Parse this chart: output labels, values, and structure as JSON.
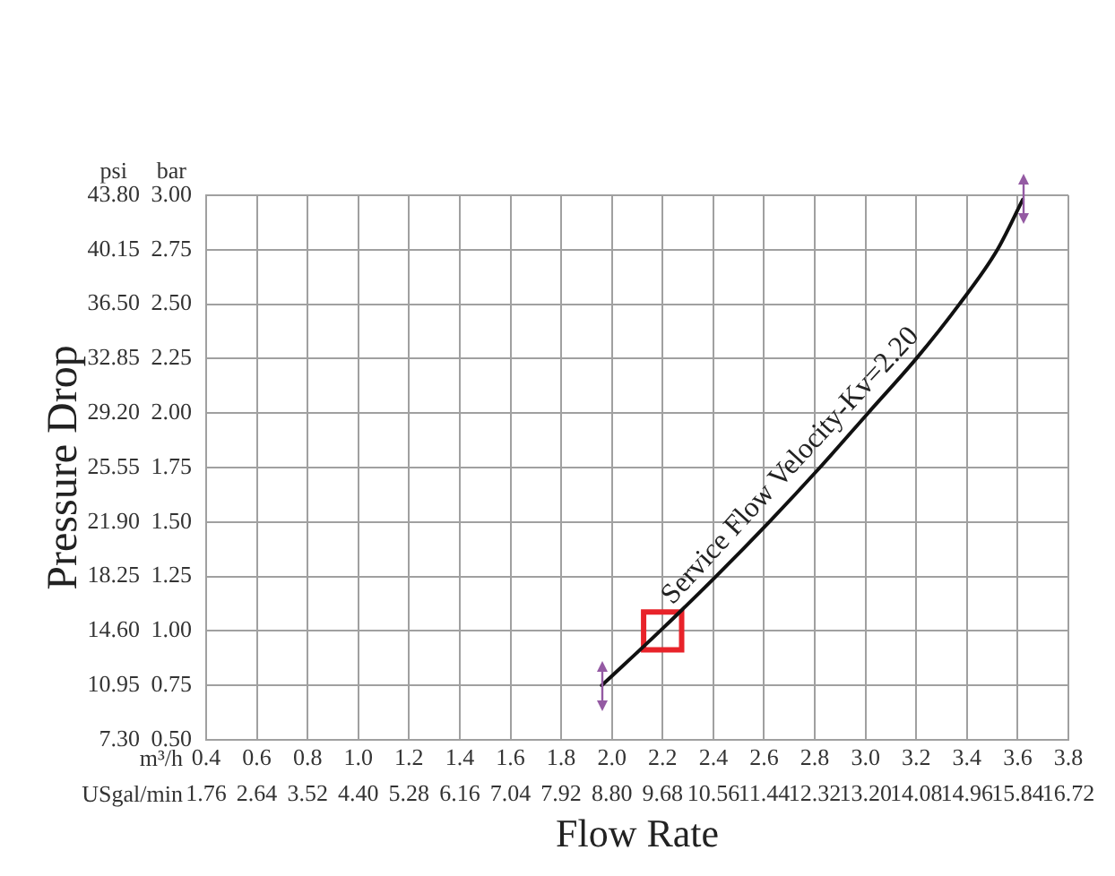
{
  "chart_data": {
    "type": "line",
    "xlabel": "Flow Rate",
    "ylabel": "Pressure Drop",
    "annotations": [
      "psi",
      "bar",
      "m³/h",
      "USgal/min"
    ],
    "series": [
      {
        "name": "Service Flow Velocity-Kv=2.20",
        "color": "#111111",
        "marker": "none",
        "axis": "y2",
        "x": [
          1.96,
          2.19,
          2.41,
          2.62,
          2.82,
          3.01,
          3.2,
          3.37,
          3.52,
          3.62
        ],
        "values": [
          0.75,
          1.0,
          1.25,
          1.5,
          1.75,
          2.0,
          2.25,
          2.5,
          2.75,
          2.98
        ]
      },
      {
        "type": "scatter",
        "color": "#e8232a",
        "marker": "square",
        "axis": "y2",
        "x": [
          2.2
        ],
        "values": [
          1.0
        ]
      }
    ],
    "xlim": [
      0.4,
      3.8
    ],
    "xticks": [
      0.4,
      0.6,
      0.8,
      {
        "value": 1,
        "label": "1.0"
      },
      1.2,
      1.4,
      1.6,
      1.8,
      {
        "value": 2,
        "label": "2.0"
      },
      2.2,
      2.4,
      2.6,
      2.8,
      {
        "value": 3,
        "label": "3.0"
      },
      3.2,
      3.4,
      3.6,
      3.8
    ],
    "x2lim": [
      1.76,
      16.72
    ],
    "x2ticks": [
      1.76,
      2.64,
      3.52,
      {
        "value": 4.4,
        "label": "4.40"
      },
      5.28,
      6.16,
      7.04,
      7.92,
      {
        "value": 8.8,
        "label": "8.80"
      },
      9.68,
      10.56,
      11.44,
      12.32,
      {
        "value": 13.2,
        "label": "13.20"
      },
      14.08,
      14.96,
      15.84,
      16.72
    ],
    "ylim": [
      7.3,
      43.8
    ],
    "yticks": [
      {
        "value": 7.3,
        "label": "7.30"
      },
      10.95,
      {
        "value": 14.6,
        "label": "14.60"
      },
      18.25,
      {
        "value": 21.9,
        "label": "21.90"
      },
      25.55,
      {
        "value": 29.2,
        "label": "29.20"
      },
      32.85,
      {
        "value": 36.5,
        "label": "36.50"
      },
      40.15,
      {
        "value": 43.8,
        "label": "43.80"
      }
    ],
    "y2lim": [
      0.5,
      3.0
    ],
    "y2ticks": [
      {
        "value": 0.5,
        "label": "0.50"
      },
      0.75,
      {
        "value": 1,
        "label": "1.00"
      },
      1.25,
      {
        "value": 1.5,
        "label": "1.50"
      },
      1.75,
      {
        "value": 2,
        "label": "2.00"
      },
      2.25,
      {
        "value": 2.5,
        "label": "2.50"
      },
      2.75,
      {
        "value": 3,
        "label": "3.00"
      }
    ],
    "grid": true
  }
}
